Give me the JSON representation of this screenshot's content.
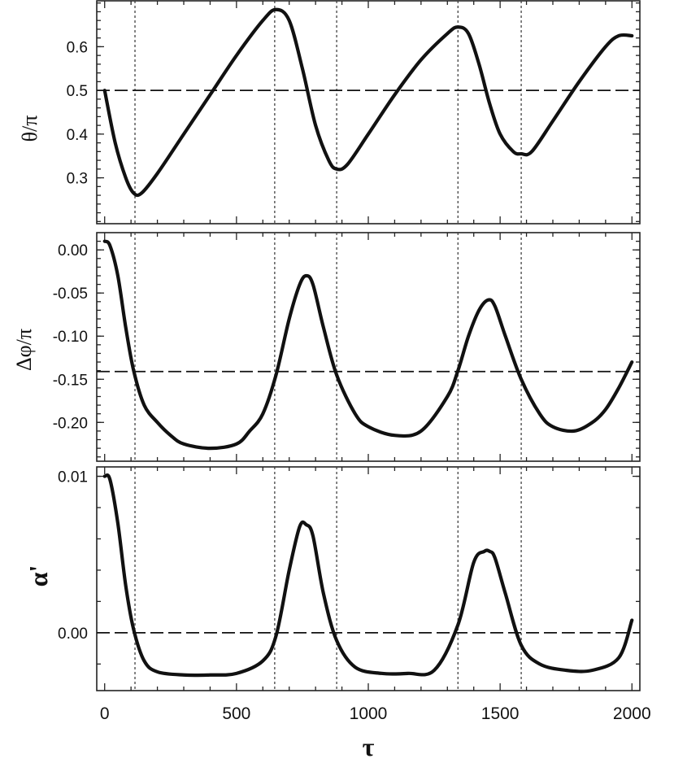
{
  "chart_data": [
    {
      "type": "line",
      "ylabel": "θ/π",
      "xlim": [
        -30,
        2030
      ],
      "ylim": [
        0.195,
        0.705
      ],
      "yticks": [
        0.3,
        0.4,
        0.5,
        0.6
      ],
      "ytick_labels": [
        "0.3",
        "0.4",
        "0.5",
        "0.6"
      ],
      "hline": 0.5,
      "series": [
        {
          "x": [
            0,
            40,
            80,
            110,
            140,
            200,
            300,
            400,
            500,
            600,
            650,
            700,
            750,
            800,
            850,
            880,
            920,
            1000,
            1100,
            1200,
            1300,
            1340,
            1380,
            1420,
            1460,
            1500,
            1550,
            1580,
            1620,
            1700,
            1800,
            1900,
            1950,
            2000
          ],
          "y": [
            0.5,
            0.38,
            0.3,
            0.265,
            0.265,
            0.31,
            0.4,
            0.49,
            0.58,
            0.66,
            0.685,
            0.66,
            0.55,
            0.42,
            0.34,
            0.32,
            0.33,
            0.4,
            0.49,
            0.57,
            0.63,
            0.645,
            0.63,
            0.56,
            0.47,
            0.4,
            0.36,
            0.355,
            0.36,
            0.43,
            0.52,
            0.6,
            0.625,
            0.625
          ]
        }
      ]
    },
    {
      "type": "line",
      "ylabel": "Δφ/π",
      "xlim": [
        -30,
        2030
      ],
      "ylim": [
        -0.245,
        0.02
      ],
      "yticks": [
        0.0,
        -0.05,
        -0.1,
        -0.15,
        -0.2
      ],
      "ytick_labels": [
        "0.00",
        "-0.05",
        "-0.10",
        "-0.15",
        "-0.20"
      ],
      "hline": -0.141,
      "series": [
        {
          "x": [
            0,
            20,
            50,
            80,
            110,
            150,
            200,
            250,
            300,
            400,
            500,
            550,
            600,
            650,
            700,
            740,
            765,
            790,
            830,
            880,
            950,
            1000,
            1100,
            1200,
            1300,
            1340,
            1380,
            1420,
            1455,
            1480,
            1520,
            1580,
            1650,
            1700,
            1780,
            1850,
            1900,
            1950,
            2000
          ],
          "y": [
            0.01,
            0.005,
            -0.03,
            -0.09,
            -0.14,
            -0.18,
            -0.2,
            -0.215,
            -0.225,
            -0.23,
            -0.225,
            -0.21,
            -0.19,
            -0.145,
            -0.08,
            -0.04,
            -0.03,
            -0.04,
            -0.09,
            -0.145,
            -0.19,
            -0.205,
            -0.215,
            -0.21,
            -0.17,
            -0.14,
            -0.1,
            -0.07,
            -0.058,
            -0.065,
            -0.1,
            -0.15,
            -0.19,
            -0.205,
            -0.21,
            -0.2,
            -0.185,
            -0.16,
            -0.13
          ]
        }
      ]
    },
    {
      "type": "line",
      "ylabel": "α'",
      "xlabel": "τ",
      "xlim": [
        -30,
        2030
      ],
      "ylim": [
        -0.0037,
        0.0106
      ],
      "yticks": [
        0.0,
        0.01
      ],
      "ytick_labels": [
        "0.00",
        "0.01"
      ],
      "xticks": [
        0,
        500,
        1000,
        1500,
        2000
      ],
      "xtick_labels": [
        "0",
        "500",
        "1000",
        "1500",
        "2000"
      ],
      "hline": 0.0,
      "vlines": [
        115,
        645,
        880,
        1340,
        1580
      ],
      "series": [
        {
          "x": [
            0,
            20,
            50,
            80,
            110,
            150,
            200,
            300,
            400,
            500,
            600,
            650,
            700,
            740,
            765,
            790,
            830,
            880,
            950,
            1050,
            1150,
            1250,
            1340,
            1400,
            1440,
            1460,
            1480,
            1520,
            1580,
            1650,
            1750,
            1850,
            1950,
            2000
          ],
          "y": [
            0.01,
            0.0098,
            0.007,
            0.003,
            0.0002,
            -0.0018,
            -0.0025,
            -0.0027,
            -0.0027,
            -0.0026,
            -0.0018,
            -0.0002,
            0.004,
            0.0068,
            0.0069,
            0.0062,
            0.0025,
            -0.0005,
            -0.0022,
            -0.0026,
            -0.0026,
            -0.0024,
            0.0005,
            0.0045,
            0.0052,
            0.0052,
            0.0048,
            0.0025,
            -0.0008,
            -0.002,
            -0.0024,
            -0.0024,
            -0.0016,
            0.0008
          ]
        }
      ]
    }
  ]
}
